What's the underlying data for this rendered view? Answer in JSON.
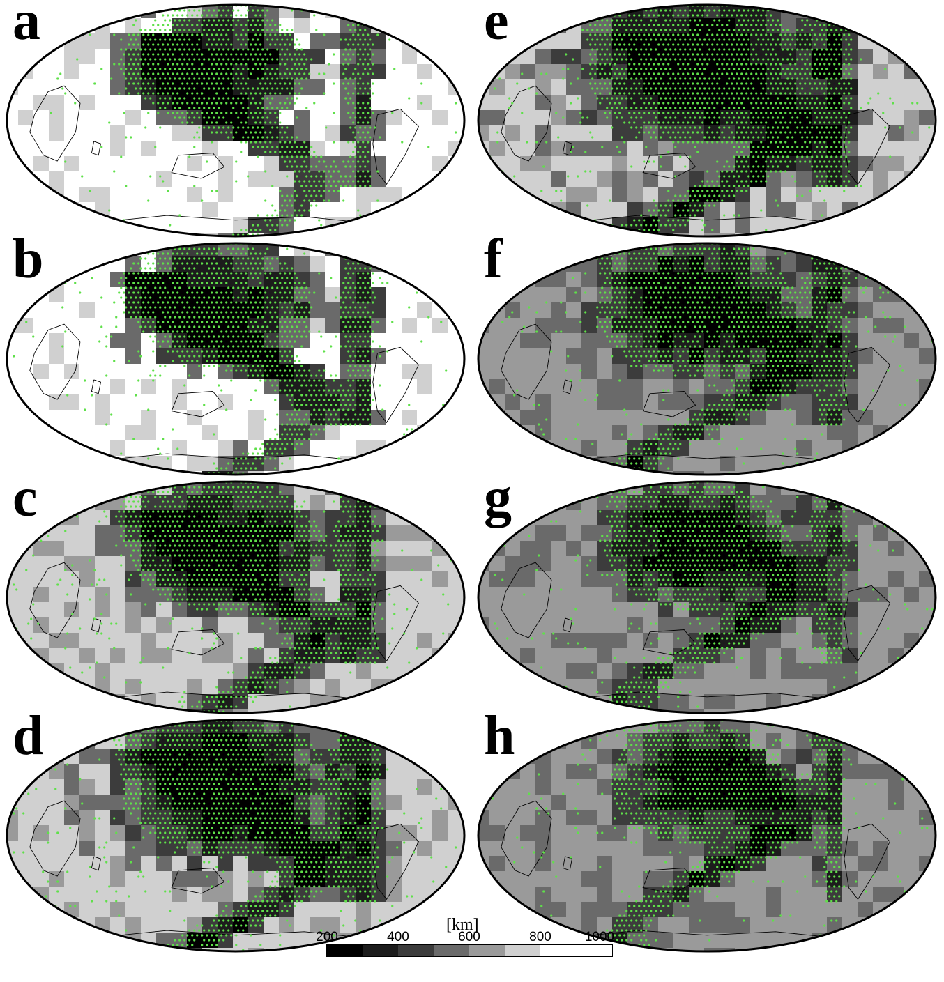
{
  "colors": {
    "stations": "#5fe04a",
    "coastline": "#000000",
    "outline": "#000000",
    "levels": [
      "#000000",
      "#1c1c1c",
      "#3c3c3c",
      "#6a6a6a",
      "#9a9a9a",
      "#d0d0d0",
      "#ffffff"
    ]
  },
  "panels": [
    {
      "id": "a",
      "label": "a",
      "green_fraction": 0.28,
      "background_level": 6
    },
    {
      "id": "b",
      "label": "b",
      "green_fraction": 0.32,
      "background_level": 6
    },
    {
      "id": "c",
      "label": "c",
      "green_fraction": 0.42,
      "background_level": 5
    },
    {
      "id": "d",
      "label": "d",
      "green_fraction": 0.5,
      "background_level": 5
    },
    {
      "id": "e",
      "label": "e",
      "green_fraction": 0.55,
      "background_level": 5
    },
    {
      "id": "f",
      "label": "f",
      "green_fraction": 0.45,
      "background_level": 4
    },
    {
      "id": "g",
      "label": "g",
      "green_fraction": 0.38,
      "background_level": 4
    },
    {
      "id": "h",
      "label": "h",
      "green_fraction": 0.3,
      "background_level": 4
    }
  ],
  "colorbar": {
    "unit": "[km]",
    "ticks": [
      "200",
      "400",
      "600",
      "800",
      "1000"
    ]
  }
}
